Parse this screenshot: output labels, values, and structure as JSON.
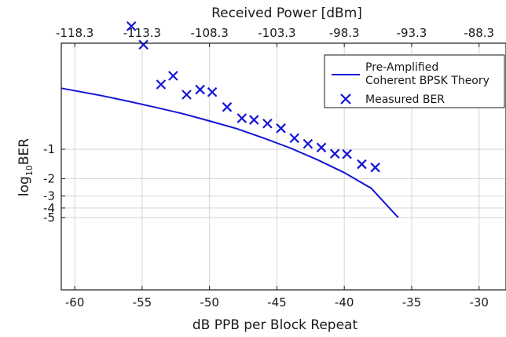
{
  "chart_data": {
    "type": "line",
    "x_bottom": {
      "label": "dB PPB per Block Repeat",
      "range": [
        -61,
        -28
      ],
      "ticks": [
        -60,
        -55,
        -50,
        -45,
        -40,
        -35,
        -30
      ],
      "tick_labels": [
        "-60",
        "-55",
        "-50",
        "-45",
        "-40",
        "-35",
        "-30"
      ]
    },
    "x_top": {
      "label": "Received Power [dBm]",
      "ticks": [
        -118.3,
        -113.3,
        -108.3,
        -103.3,
        -98.3,
        -93.3,
        -88.3
      ],
      "tick_labels": [
        "-118.3",
        "-113.3",
        "-108.3",
        "-103.3",
        "-98.3",
        "-93.3",
        "-88.3"
      ]
    },
    "y": {
      "label_main": "log",
      "label_sub": "10",
      "label_tail": "BER",
      "scale": "log-log",
      "ticks": [
        -1,
        -2,
        -3,
        -4,
        -5
      ],
      "tick_labels": [
        "-1",
        "-2",
        "-3",
        "-4",
        "-5"
      ]
    },
    "grid": true,
    "legend_position": "top-right",
    "series": [
      {
        "name_line1": "Pre-Amplified",
        "name_line2": "Coherent BPSK Theory",
        "kind": "line",
        "color": "#1515d6",
        "x": [
          -61,
          -58,
          -56,
          -54,
          -52,
          -50,
          -48,
          -46,
          -44,
          -42,
          -40,
          -38,
          -36
        ],
        "y": [
          -0.237,
          -0.283,
          -0.323,
          -0.373,
          -0.432,
          -0.513,
          -0.615,
          -0.767,
          -0.972,
          -1.279,
          -1.738,
          -2.512,
          -5.0
        ]
      },
      {
        "name": "Measured BER",
        "kind": "scatter",
        "marker": "x",
        "color": "#1515d6",
        "x": [
          -55.8,
          -54.9,
          -53.6,
          -52.7,
          -51.7,
          -50.7,
          -49.8,
          -48.7,
          -47.6,
          -46.7,
          -45.7,
          -44.7,
          -43.7,
          -42.7,
          -41.7,
          -40.7,
          -39.8,
          -38.7,
          -37.7
        ],
        "y": [
          -0.055,
          -0.085,
          -0.217,
          -0.177,
          -0.276,
          -0.245,
          -0.26,
          -0.37,
          -0.482,
          -0.5,
          -0.545,
          -0.61,
          -0.77,
          -0.88,
          -0.96,
          -1.111,
          -1.121,
          -1.423,
          -1.536
        ]
      }
    ]
  }
}
